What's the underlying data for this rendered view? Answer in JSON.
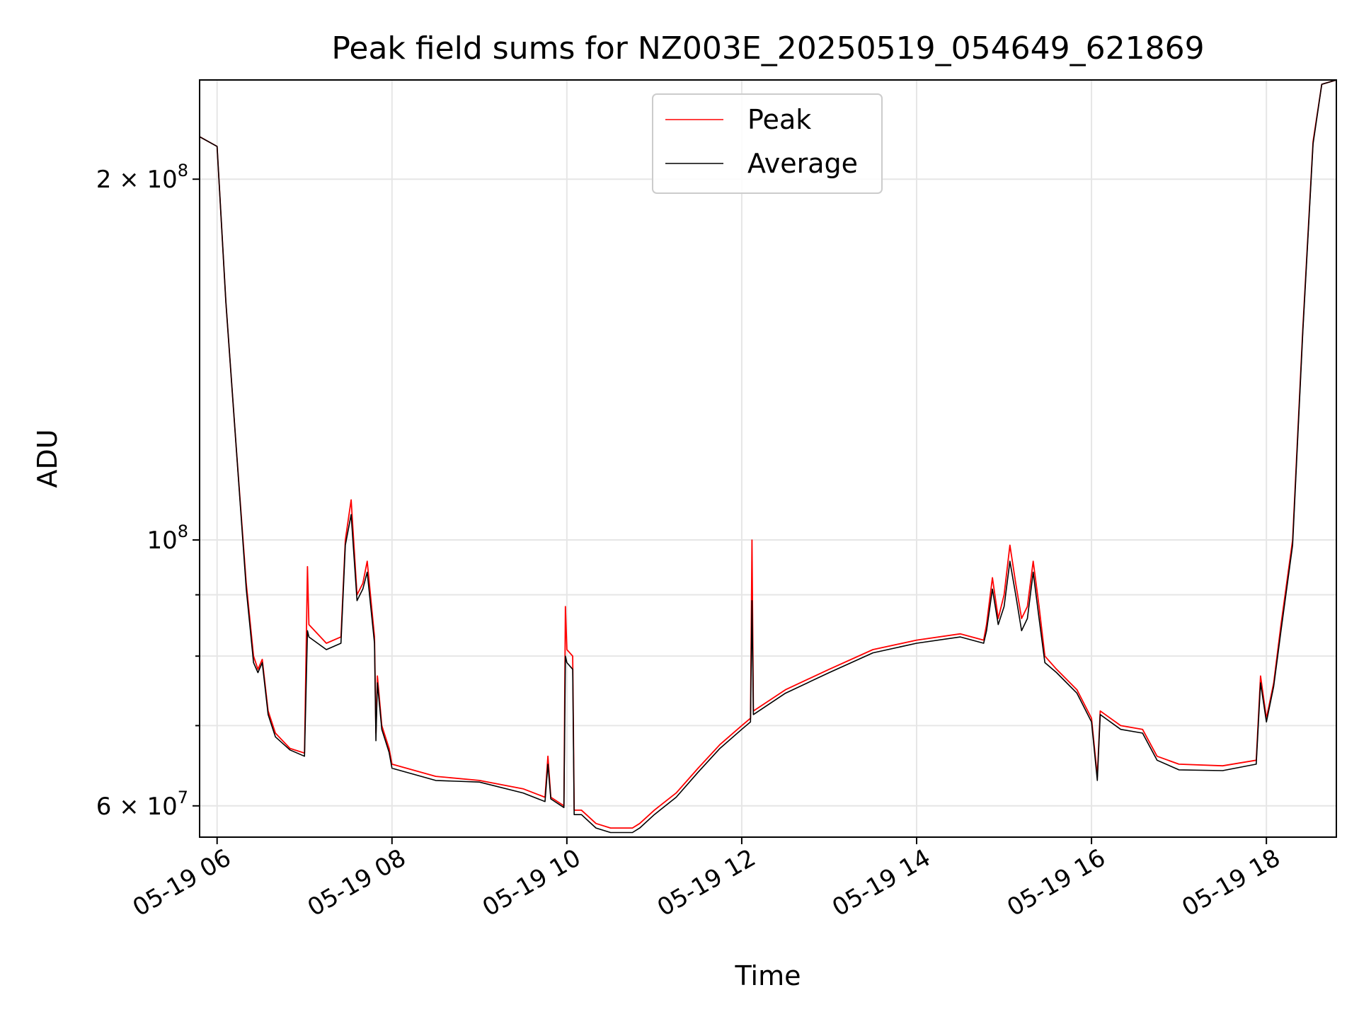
{
  "chart_data": {
    "type": "line",
    "title": "Peak field sums for NZ003E_20250519_054649_621869",
    "xlabel": "Time",
    "ylabel": "ADU",
    "y_scale": "log",
    "ylim": [
      56500000,
      242000000
    ],
    "xlim": [
      "2025-05-19 05:48",
      "2025-05-19 18:48"
    ],
    "grid": true,
    "legend_placement": "upper center",
    "x_ticks": [
      {
        "t": "2025-05-19 06:00",
        "label": "05-19 06"
      },
      {
        "t": "2025-05-19 08:00",
        "label": "05-19 08"
      },
      {
        "t": "2025-05-19 10:00",
        "label": "05-19 10"
      },
      {
        "t": "2025-05-19 12:00",
        "label": "05-19 12"
      },
      {
        "t": "2025-05-19 14:00",
        "label": "05-19 14"
      },
      {
        "t": "2025-05-19 16:00",
        "label": "05-19 16"
      },
      {
        "t": "2025-05-19 18:00",
        "label": "05-19 18"
      }
    ],
    "y_ticks_major": [
      {
        "v": 60000000,
        "base": "6 × 10",
        "exp": "7"
      },
      {
        "v": 100000000,
        "base": "10",
        "exp": "8"
      },
      {
        "v": 200000000,
        "base": "2 × 10",
        "exp": "8"
      }
    ],
    "y_ticks_minor": [
      70000000,
      80000000,
      90000000
    ],
    "series": [
      {
        "name": "Peak",
        "color": "#ff0000",
        "points": [
          [
            "2025-05-19 05:48",
            217000000
          ],
          [
            "2025-05-19 06:00",
            213000000
          ],
          [
            "2025-05-19 06:06",
            158000000
          ],
          [
            "2025-05-19 06:13",
            120000000
          ],
          [
            "2025-05-19 06:20",
            92000000
          ],
          [
            "2025-05-19 06:25",
            80000000
          ],
          [
            "2025-05-19 06:28",
            78000000
          ],
          [
            "2025-05-19 06:31",
            79500000
          ],
          [
            "2025-05-19 06:35",
            72000000
          ],
          [
            "2025-05-19 06:40",
            69000000
          ],
          [
            "2025-05-19 06:50",
            67000000
          ],
          [
            "2025-05-19 07:00",
            66400000
          ],
          [
            "2025-05-19 07:02",
            95000000
          ],
          [
            "2025-05-19 07:03",
            85000000
          ],
          [
            "2025-05-19 07:15",
            82000000
          ],
          [
            "2025-05-19 07:25",
            83000000
          ],
          [
            "2025-05-19 07:28",
            100000000
          ],
          [
            "2025-05-19 07:32",
            108000000
          ],
          [
            "2025-05-19 07:36",
            90000000
          ],
          [
            "2025-05-19 07:40",
            92000000
          ],
          [
            "2025-05-19 07:43",
            96000000
          ],
          [
            "2025-05-19 07:48",
            83000000
          ],
          [
            "2025-05-19 07:49",
            69000000
          ],
          [
            "2025-05-19 07:50",
            77000000
          ],
          [
            "2025-05-19 07:53",
            70000000
          ],
          [
            "2025-05-19 07:58",
            67000000
          ],
          [
            "2025-05-19 08:00",
            65000000
          ],
          [
            "2025-05-19 08:30",
            63500000
          ],
          [
            "2025-05-19 09:00",
            63000000
          ],
          [
            "2025-05-19 09:30",
            62000000
          ],
          [
            "2025-05-19 09:45",
            61000000
          ],
          [
            "2025-05-19 09:47",
            66000000
          ],
          [
            "2025-05-19 09:49",
            61000000
          ],
          [
            "2025-05-19 09:58",
            60000000
          ],
          [
            "2025-05-19 09:59",
            88000000
          ],
          [
            "2025-05-19 10:00",
            81000000
          ],
          [
            "2025-05-19 10:04",
            80000000
          ],
          [
            "2025-05-19 10:05",
            59500000
          ],
          [
            "2025-05-19 10:10",
            59500000
          ],
          [
            "2025-05-19 10:20",
            58000000
          ],
          [
            "2025-05-19 10:30",
            57500000
          ],
          [
            "2025-05-19 10:45",
            57500000
          ],
          [
            "2025-05-19 10:50",
            58000000
          ],
          [
            "2025-05-19 11:00",
            59500000
          ],
          [
            "2025-05-19 11:15",
            61500000
          ],
          [
            "2025-05-19 11:30",
            64500000
          ],
          [
            "2025-05-19 11:45",
            67500000
          ],
          [
            "2025-05-19 12:00",
            70000000
          ],
          [
            "2025-05-19 12:06",
            71000000
          ],
          [
            "2025-05-19 12:07",
            100000000
          ],
          [
            "2025-05-19 12:08",
            72000000
          ],
          [
            "2025-05-19 12:30",
            75000000
          ],
          [
            "2025-05-19 13:00",
            78000000
          ],
          [
            "2025-05-19 13:30",
            81000000
          ],
          [
            "2025-05-19 14:00",
            82500000
          ],
          [
            "2025-05-19 14:30",
            83500000
          ],
          [
            "2025-05-19 14:46",
            82500000
          ],
          [
            "2025-05-19 14:48",
            85000000
          ],
          [
            "2025-05-19 14:52",
            93000000
          ],
          [
            "2025-05-19 14:56",
            86000000
          ],
          [
            "2025-05-19 15:00",
            90000000
          ],
          [
            "2025-05-19 15:04",
            99000000
          ],
          [
            "2025-05-19 15:08",
            92000000
          ],
          [
            "2025-05-19 15:12",
            86000000
          ],
          [
            "2025-05-19 15:16",
            88000000
          ],
          [
            "2025-05-19 15:20",
            96000000
          ],
          [
            "2025-05-19 15:24",
            88000000
          ],
          [
            "2025-05-19 15:28",
            80000000
          ],
          [
            "2025-05-19 15:36",
            78000000
          ],
          [
            "2025-05-19 15:50",
            75000000
          ],
          [
            "2025-05-19 16:00",
            71000000
          ],
          [
            "2025-05-19 16:04",
            63500000
          ],
          [
            "2025-05-19 16:06",
            72000000
          ],
          [
            "2025-05-19 16:20",
            70000000
          ],
          [
            "2025-05-19 16:35",
            69500000
          ],
          [
            "2025-05-19 16:45",
            66000000
          ],
          [
            "2025-05-19 17:00",
            65000000
          ],
          [
            "2025-05-19 17:30",
            64800000
          ],
          [
            "2025-05-19 17:53",
            65500000
          ],
          [
            "2025-05-19 17:56",
            77000000
          ],
          [
            "2025-05-19 18:00",
            71000000
          ],
          [
            "2025-05-19 18:05",
            76000000
          ],
          [
            "2025-05-19 18:10",
            85000000
          ],
          [
            "2025-05-19 18:18",
            100000000
          ],
          [
            "2025-05-19 18:25",
            150000000
          ],
          [
            "2025-05-19 18:32",
            215000000
          ],
          [
            "2025-05-19 18:38",
            240000000
          ],
          [
            "2025-05-19 18:48",
            242000000
          ]
        ]
      },
      {
        "name": "Average",
        "color": "#000000",
        "points": [
          [
            "2025-05-19 05:48",
            217000000
          ],
          [
            "2025-05-19 06:00",
            213000000
          ],
          [
            "2025-05-19 06:06",
            158000000
          ],
          [
            "2025-05-19 06:13",
            120000000
          ],
          [
            "2025-05-19 06:20",
            91000000
          ],
          [
            "2025-05-19 06:25",
            79000000
          ],
          [
            "2025-05-19 06:28",
            77500000
          ],
          [
            "2025-05-19 06:31",
            79000000
          ],
          [
            "2025-05-19 06:35",
            71500000
          ],
          [
            "2025-05-19 06:40",
            68500000
          ],
          [
            "2025-05-19 06:50",
            66800000
          ],
          [
            "2025-05-19 07:00",
            66000000
          ],
          [
            "2025-05-19 07:02",
            84000000
          ],
          [
            "2025-05-19 07:03",
            83000000
          ],
          [
            "2025-05-19 07:15",
            81000000
          ],
          [
            "2025-05-19 07:25",
            82000000
          ],
          [
            "2025-05-19 07:28",
            99000000
          ],
          [
            "2025-05-19 07:32",
            105000000
          ],
          [
            "2025-05-19 07:36",
            89000000
          ],
          [
            "2025-05-19 07:40",
            91000000
          ],
          [
            "2025-05-19 07:43",
            94000000
          ],
          [
            "2025-05-19 07:48",
            82000000
          ],
          [
            "2025-05-19 07:49",
            68000000
          ],
          [
            "2025-05-19 07:50",
            76000000
          ],
          [
            "2025-05-19 07:53",
            69500000
          ],
          [
            "2025-05-19 07:58",
            66500000
          ],
          [
            "2025-05-19 08:00",
            64500000
          ],
          [
            "2025-05-19 08:30",
            63000000
          ],
          [
            "2025-05-19 09:00",
            62800000
          ],
          [
            "2025-05-19 09:30",
            61500000
          ],
          [
            "2025-05-19 09:45",
            60500000
          ],
          [
            "2025-05-19 09:47",
            65000000
          ],
          [
            "2025-05-19 09:49",
            60800000
          ],
          [
            "2025-05-19 09:58",
            59800000
          ],
          [
            "2025-05-19 09:59",
            80000000
          ],
          [
            "2025-05-19 10:00",
            79000000
          ],
          [
            "2025-05-19 10:04",
            78000000
          ],
          [
            "2025-05-19 10:05",
            59000000
          ],
          [
            "2025-05-19 10:10",
            59000000
          ],
          [
            "2025-05-19 10:20",
            57500000
          ],
          [
            "2025-05-19 10:30",
            57000000
          ],
          [
            "2025-05-19 10:45",
            57000000
          ],
          [
            "2025-05-19 10:50",
            57500000
          ],
          [
            "2025-05-19 11:00",
            59000000
          ],
          [
            "2025-05-19 11:15",
            61000000
          ],
          [
            "2025-05-19 11:30",
            64000000
          ],
          [
            "2025-05-19 11:45",
            67000000
          ],
          [
            "2025-05-19 12:00",
            69500000
          ],
          [
            "2025-05-19 12:06",
            70500000
          ],
          [
            "2025-05-19 12:07",
            89000000
          ],
          [
            "2025-05-19 12:08",
            71500000
          ],
          [
            "2025-05-19 12:30",
            74500000
          ],
          [
            "2025-05-19 13:00",
            77500000
          ],
          [
            "2025-05-19 13:30",
            80500000
          ],
          [
            "2025-05-19 14:00",
            82000000
          ],
          [
            "2025-05-19 14:30",
            83000000
          ],
          [
            "2025-05-19 14:46",
            82000000
          ],
          [
            "2025-05-19 14:48",
            84000000
          ],
          [
            "2025-05-19 14:52",
            91000000
          ],
          [
            "2025-05-19 14:56",
            85000000
          ],
          [
            "2025-05-19 15:00",
            88000000
          ],
          [
            "2025-05-19 15:04",
            96000000
          ],
          [
            "2025-05-19 15:08",
            90000000
          ],
          [
            "2025-05-19 15:12",
            84000000
          ],
          [
            "2025-05-19 15:16",
            86000000
          ],
          [
            "2025-05-19 15:20",
            94000000
          ],
          [
            "2025-05-19 15:24",
            86000000
          ],
          [
            "2025-05-19 15:28",
            79000000
          ],
          [
            "2025-05-19 15:36",
            77500000
          ],
          [
            "2025-05-19 15:50",
            74500000
          ],
          [
            "2025-05-19 16:00",
            70500000
          ],
          [
            "2025-05-19 16:04",
            63000000
          ],
          [
            "2025-05-19 16:06",
            71500000
          ],
          [
            "2025-05-19 16:20",
            69500000
          ],
          [
            "2025-05-19 16:35",
            69000000
          ],
          [
            "2025-05-19 16:45",
            65500000
          ],
          [
            "2025-05-19 17:00",
            64300000
          ],
          [
            "2025-05-19 17:30",
            64200000
          ],
          [
            "2025-05-19 17:53",
            65000000
          ],
          [
            "2025-05-19 17:56",
            76000000
          ],
          [
            "2025-05-19 18:00",
            70500000
          ],
          [
            "2025-05-19 18:05",
            75500000
          ],
          [
            "2025-05-19 18:10",
            84000000
          ],
          [
            "2025-05-19 18:18",
            99000000
          ],
          [
            "2025-05-19 18:25",
            149000000
          ],
          [
            "2025-05-19 18:32",
            214000000
          ],
          [
            "2025-05-19 18:38",
            240000000
          ],
          [
            "2025-05-19 18:48",
            242000000
          ]
        ]
      }
    ]
  }
}
